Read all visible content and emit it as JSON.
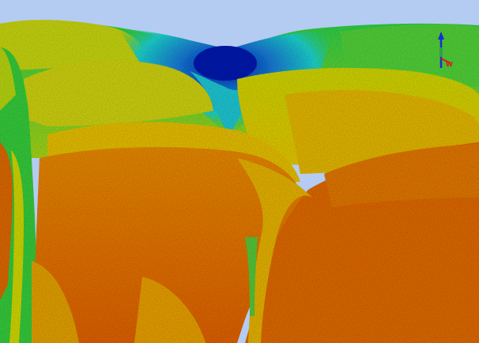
{
  "viewer": {
    "background_color": "#b4cbf2",
    "colormap": [
      "#0a1fb0",
      "#1aa6e0",
      "#20d6d0",
      "#2ed04a",
      "#a6d61a",
      "#e6d20a",
      "#f0a00a",
      "#e06a0a",
      "#d2500c"
    ]
  },
  "axis_gizmo": {
    "icon": "orientation-axes-icon",
    "x_label": "W",
    "x_color": "#e01818",
    "y_color": "#22a83a",
    "z_color": "#1a2ad8"
  }
}
